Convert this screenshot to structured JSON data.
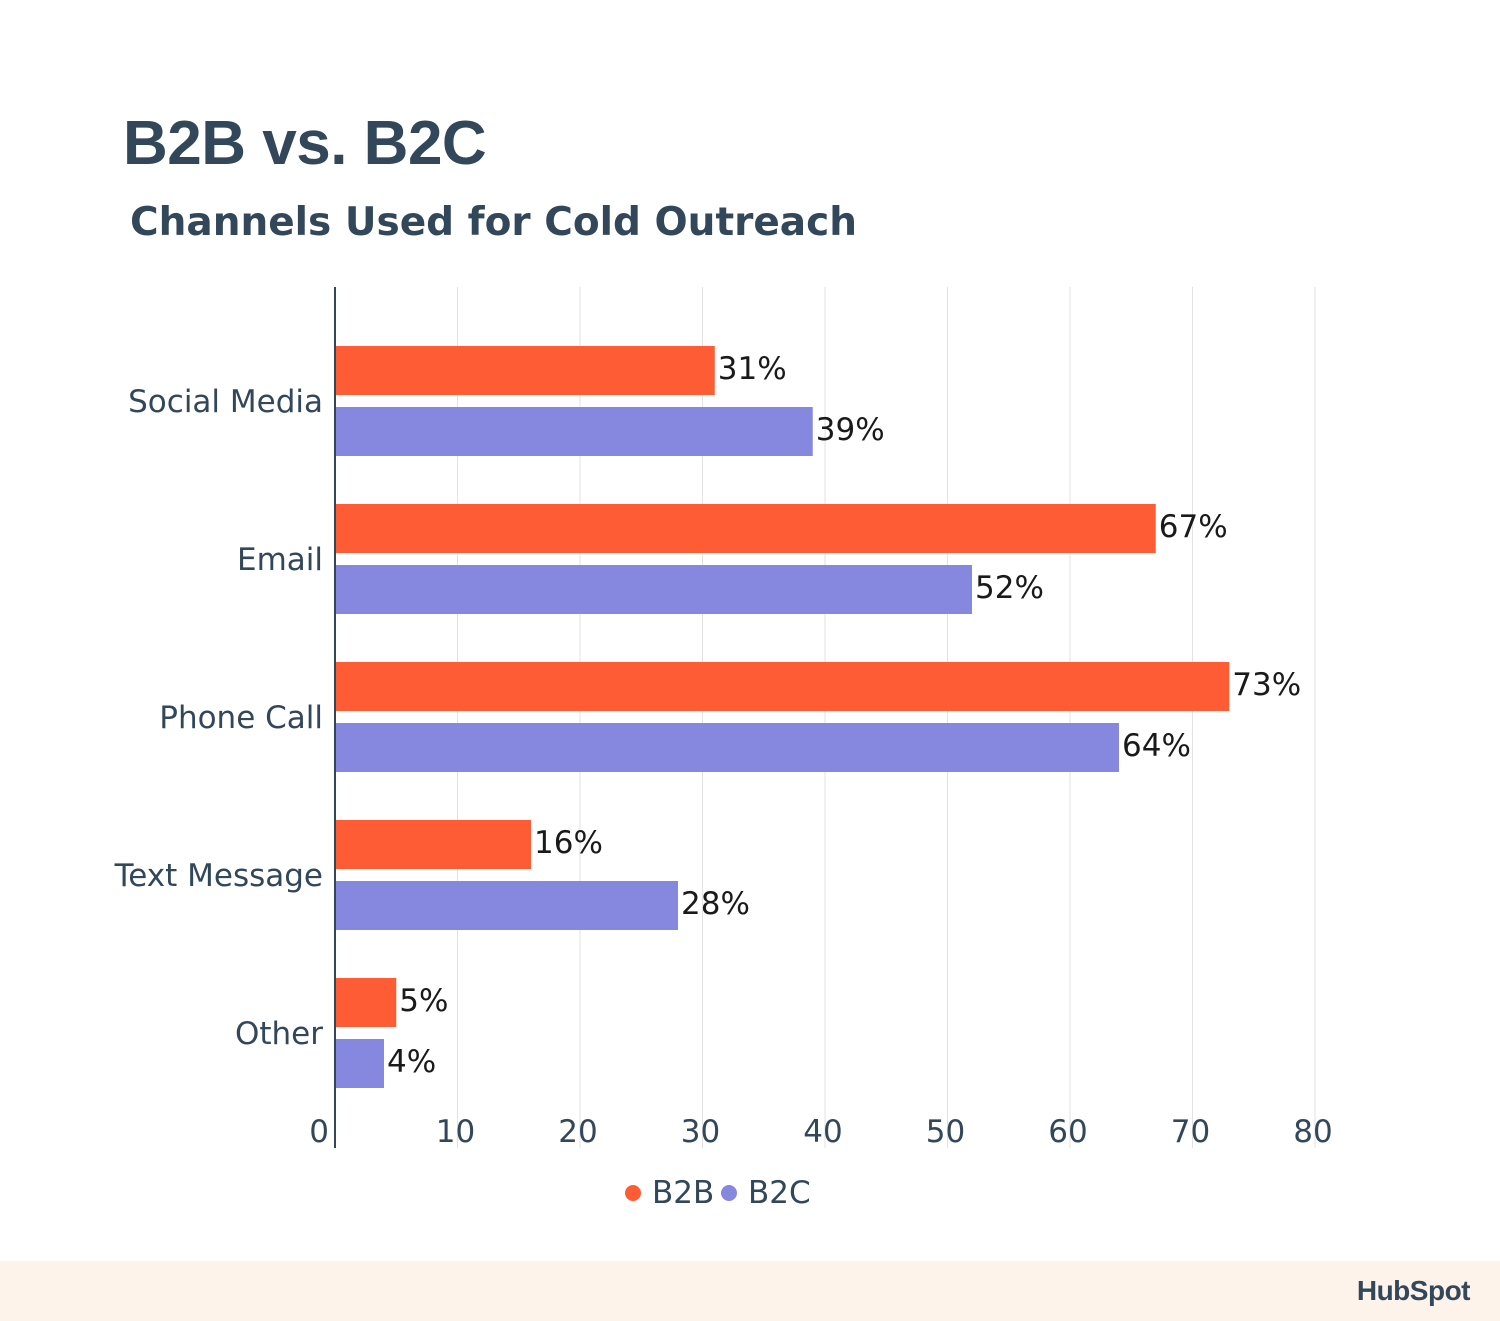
{
  "header": {
    "title": "B2B vs. B2C",
    "subtitle": "Channels Used for Cold Outreach"
  },
  "brand": {
    "logo_text": "HubSpot"
  },
  "colors": {
    "b2b": "#fe5c35",
    "b2c": "#8688df",
    "text": "#33475b",
    "grid": "#e2e2e2"
  },
  "chart_data": {
    "type": "bar",
    "orientation": "horizontal",
    "title": "B2B vs. B2C",
    "subtitle": "Channels Used for Cold Outreach",
    "categories": [
      "Social Media",
      "Email",
      "Phone Call",
      "Text Message",
      "Other"
    ],
    "series": [
      {
        "name": "B2B",
        "values": [
          31,
          67,
          73,
          16,
          5
        ],
        "labels": [
          "31%",
          "67%",
          "73%",
          "16%",
          "5%"
        ]
      },
      {
        "name": "B2C",
        "values": [
          39,
          52,
          64,
          28,
          4
        ],
        "labels": [
          "39%",
          "52%",
          "64%",
          "28%",
          "4%"
        ]
      }
    ],
    "xlim": [
      0,
      80
    ],
    "xticks": [
      "0",
      "10",
      "20",
      "30",
      "40",
      "50",
      "60",
      "70",
      "80"
    ],
    "grid": true,
    "legend_placement": "bottom-center"
  }
}
